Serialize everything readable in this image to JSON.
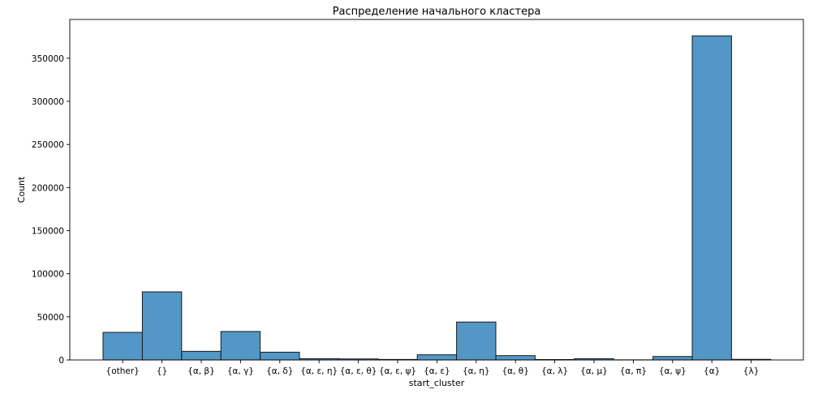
{
  "chart_data": {
    "type": "bar",
    "title": "Распределение начального кластера",
    "xlabel": "start_cluster",
    "ylabel": "Count",
    "categories": [
      "{other}",
      "{}",
      "{α, β}",
      "{α, γ}",
      "{α, δ}",
      "{α, ε, η}",
      "{α, ε, θ}",
      "{α, ε, ψ}",
      "{α, ε}",
      "{α, η}",
      "{α, θ}",
      "{α, λ}",
      "{α, μ}",
      "{α, π}",
      "{α, ψ}",
      "{α}",
      "{λ}"
    ],
    "values": [
      32000,
      79000,
      10000,
      33000,
      9000,
      1500,
      1200,
      600,
      6000,
      44000,
      5000,
      500,
      1500,
      150,
      4000,
      376000,
      700
    ],
    "ylim": [
      0,
      395000
    ],
    "yticks": [
      0,
      50000,
      100000,
      150000,
      200000,
      250000,
      300000,
      350000
    ],
    "grid": false,
    "colors": {
      "bar_fill": "#5297c6",
      "bar_edge": "#1a1a1a"
    }
  }
}
